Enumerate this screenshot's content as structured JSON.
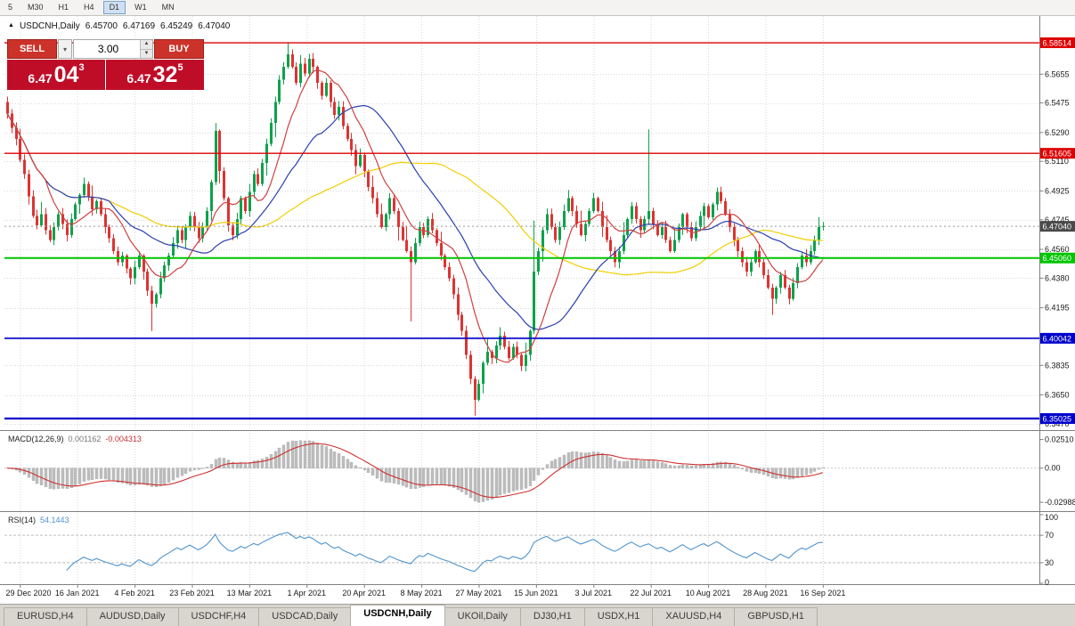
{
  "toolbar": {
    "timeframes": [
      "5",
      "M30",
      "H1",
      "H4",
      "D1",
      "W1",
      "MN"
    ],
    "active": "D1"
  },
  "chart_header": {
    "marker": "▲",
    "symbol": "USDCNH,Daily",
    "open": "6.45700",
    "high": "6.47169",
    "low": "6.45249",
    "close": "6.47040"
  },
  "trade_widget": {
    "sell_label": "SELL",
    "buy_label": "BUY",
    "volume": "3.00",
    "sell_price": {
      "base": "6.47",
      "pips": "04",
      "sup": "3"
    },
    "buy_price": {
      "base": "6.47",
      "pips": "32",
      "sup": "5"
    }
  },
  "price_axis": {
    "ticks": [
      "6.5655",
      "6.5475",
      "6.5290",
      "6.5110",
      "6.4925",
      "6.4745",
      "6.4560",
      "6.4380",
      "6.4195",
      "6.4015",
      "6.3835",
      "6.3650",
      "6.3470"
    ]
  },
  "indicators": {
    "macd": {
      "label": "MACD(12,26,9)",
      "main_value": "0.001162",
      "signal_value": "-0.004313",
      "ticks": [
        {
          "label": "0.02510",
          "value": 0.0251
        },
        {
          "label": "0.00",
          "value": 0
        },
        {
          "label": "-0.02988",
          "value": -0.02988
        }
      ]
    },
    "rsi": {
      "label": "RSI(14)",
      "value": "54.1443",
      "ticks": [
        {
          "label": "100",
          "value": 100
        },
        {
          "label": "70",
          "value": 70
        },
        {
          "label": "30",
          "value": 30
        },
        {
          "label": "0",
          "value": 0
        }
      ],
      "levels": [
        70,
        30
      ]
    }
  },
  "tabs": [
    {
      "label": "EURUSD,H4"
    },
    {
      "label": "AUDUSD,Daily"
    },
    {
      "label": "USDCHF,H4"
    },
    {
      "label": "USDCAD,Daily"
    },
    {
      "label": "USDCNH,Daily",
      "active": true
    },
    {
      "label": "UKOil,Daily"
    },
    {
      "label": "DJ30,H1"
    },
    {
      "label": "USDX,H1"
    },
    {
      "label": "XAUUSD,H4"
    },
    {
      "label": "GBPUSD,H1"
    }
  ],
  "colors": {
    "up": "#0ea14b",
    "down": "#dd3333",
    "ma_fast": "#cf4040",
    "ma_mid": "#2c3fb0",
    "ma_slow": "#f0ce00",
    "macd_hist": "#bdbdbd",
    "macd_signal": "#d03030",
    "rsi": "#4f94cd",
    "level_red": "#dd0000",
    "level_green": "#00c400",
    "level_blue": "#0000cc",
    "current_label_bg": "#4a4a4a",
    "grid": "#d9d9d9",
    "axis_line": "#808080",
    "tick_text": "#1a1a1a"
  },
  "chart_data": {
    "type": "candlestick",
    "symbol": "USDCNH",
    "timeframe": "Daily",
    "title": "USDCNH,Daily",
    "ylim": [
      6.3447,
      6.5896
    ],
    "last_price": 6.4704,
    "x_labels": [
      "29 Dec 2020",
      "16 Jan 2021",
      "4 Feb 2021",
      "23 Feb 2021",
      "13 Mar 2021",
      "1 Apr 2021",
      "20 Apr 2021",
      "8 May 2021",
      "27 May 2021",
      "15 Jun 2021",
      "3 Jul 2021",
      "22 Jul 2021",
      "10 Aug 2021",
      "28 Aug 2021",
      "16 Sep 2021"
    ],
    "closes": [
      6.541,
      6.532,
      6.525,
      6.512,
      6.503,
      6.489,
      6.477,
      6.471,
      6.478,
      6.468,
      6.462,
      6.47,
      6.478,
      6.472,
      6.465,
      6.475,
      6.484,
      6.49,
      6.497,
      6.489,
      6.481,
      6.486,
      6.478,
      6.47,
      6.463,
      6.455,
      6.448,
      6.452,
      6.444,
      6.438,
      6.445,
      6.452,
      6.442,
      6.43,
      6.422,
      6.428,
      6.438,
      6.446,
      6.452,
      6.46,
      6.468,
      6.462,
      6.47,
      6.477,
      6.47,
      6.463,
      6.47,
      6.48,
      6.498,
      6.53,
      6.505,
      6.488,
      6.471,
      6.465,
      6.475,
      6.488,
      6.48,
      6.492,
      6.503,
      6.497,
      6.51,
      6.522,
      6.535,
      6.548,
      6.562,
      6.57,
      6.578,
      6.57,
      6.56,
      6.572,
      6.566,
      6.575,
      6.57,
      6.56,
      6.552,
      6.56,
      6.548,
      6.54,
      6.545,
      6.533,
      6.525,
      6.518,
      6.508,
      6.515,
      6.505,
      6.495,
      6.488,
      6.478,
      6.47,
      6.478,
      6.488,
      6.48,
      6.47,
      6.462,
      6.455,
      6.448,
      6.46,
      6.47,
      6.465,
      6.475,
      6.468,
      6.46,
      6.452,
      6.445,
      6.438,
      6.428,
      6.415,
      6.405,
      6.39,
      6.375,
      6.362,
      6.372,
      6.385,
      6.392,
      6.388,
      6.396,
      6.402,
      6.395,
      6.388,
      6.395,
      6.39,
      6.383,
      6.39,
      6.405,
      6.442,
      6.455,
      6.468,
      6.478,
      6.47,
      6.462,
      6.47,
      6.48,
      6.488,
      6.48,
      6.472,
      6.465,
      6.472,
      6.48,
      6.488,
      6.48,
      6.47,
      6.462,
      6.455,
      6.448,
      6.455,
      6.465,
      6.475,
      6.483,
      6.475,
      6.468,
      6.475,
      6.48,
      6.472,
      6.465,
      6.47,
      6.462,
      6.455,
      6.462,
      6.47,
      6.478,
      6.47,
      6.463,
      6.47,
      6.477,
      6.483,
      6.476,
      6.484,
      6.492,
      6.486,
      6.478,
      6.47,
      6.462,
      6.455,
      6.448,
      6.442,
      6.448,
      6.455,
      6.448,
      6.44,
      6.432,
      6.425,
      6.432,
      6.44,
      6.432,
      6.425,
      6.435,
      6.445,
      6.452,
      6.448,
      6.455,
      6.462,
      6.47,
      6.4704
    ],
    "wick_overrides": [
      {
        "i": 34,
        "low": 6.405
      },
      {
        "i": 49,
        "high": 6.535
      },
      {
        "i": 66,
        "high": 6.5851
      },
      {
        "i": 95,
        "low": 6.411
      },
      {
        "i": 110,
        "low": 6.352
      },
      {
        "i": 124,
        "high": 6.474
      },
      {
        "i": 151,
        "high": 6.531
      },
      {
        "i": 180,
        "low": 6.415
      }
    ],
    "moving_averages": [
      {
        "period": 10,
        "color_key": "ma_fast"
      },
      {
        "period": 25,
        "color_key": "ma_mid"
      },
      {
        "period": 55,
        "color_key": "ma_slow"
      }
    ],
    "levels": [
      {
        "name": "resistance-upper",
        "value": 6.58514,
        "label": "6.58514",
        "color_key": "level_red",
        "line_width": 1.4,
        "dashed": false
      },
      {
        "name": "resistance-mid",
        "value": 6.51605,
        "label": "6.51605",
        "color_key": "level_red",
        "line_width": 1.4,
        "dashed": false
      },
      {
        "name": "current-price",
        "value": 6.4704,
        "label": "6.47040",
        "color_key": "current_label_bg",
        "line_width": 1,
        "dashed": true
      },
      {
        "name": "support-green",
        "value": 6.4506,
        "label": "6.45060",
        "color_key": "level_green",
        "line_width": 2,
        "dashed": false
      },
      {
        "name": "support-blue-upper",
        "value": 6.40042,
        "label": "6.40042",
        "color_key": "level_blue",
        "line_width": 1.6,
        "dashed": false
      },
      {
        "name": "support-blue-lower",
        "value": 6.35025,
        "label": "6.35025",
        "color_key": "level_blue",
        "line_width": 2.2,
        "dashed": false
      }
    ]
  }
}
